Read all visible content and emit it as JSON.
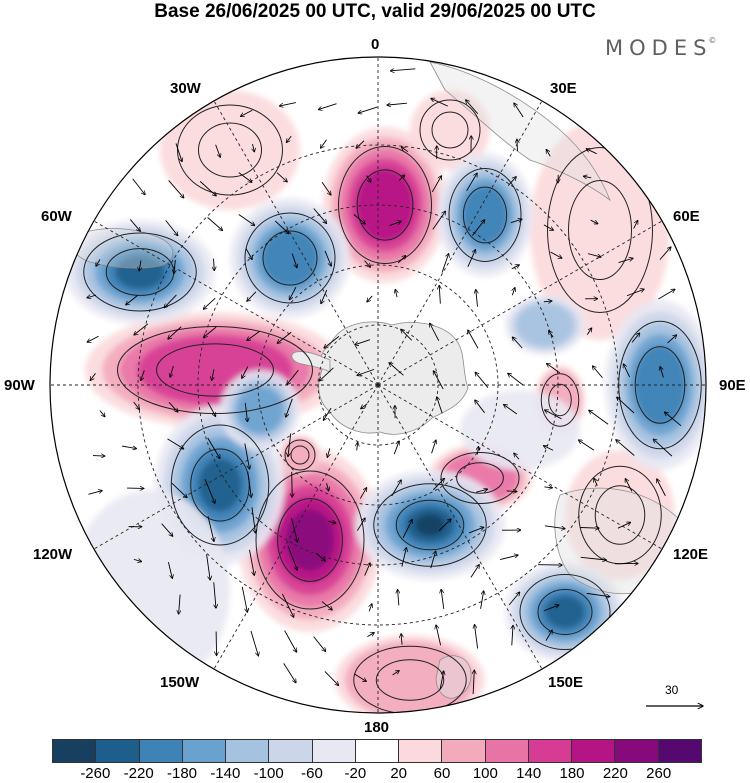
{
  "title": "Base 26/06/2025 00 UTC, valid 29/06/2025 00 UTC",
  "brand": {
    "name": "MODES",
    "mark": "©"
  },
  "map": {
    "projection": "south polar stereographic",
    "center": "South Pole",
    "graticule": "dashed",
    "longitude_labels": [
      "0",
      "30E",
      "60E",
      "90E",
      "120E",
      "150E",
      "180",
      "150W",
      "120W",
      "90W",
      "60W",
      "30W"
    ],
    "wind_arrows": true,
    "filled_contours": true
  },
  "reference_vector": {
    "value": "30"
  },
  "colorbar": {
    "colors": [
      "#173f5f",
      "#1d5e8c",
      "#3e82b6",
      "#6aa2cf",
      "#a5c2e0",
      "#ccd6ea",
      "#e8e8f2",
      "#ffffff",
      "#fbd9dc",
      "#f3aabd",
      "#e874a6",
      "#d63c94",
      "#b51485",
      "#860a7c",
      "#55086f"
    ],
    "ticks": [
      "-260",
      "-220",
      "-180",
      "-140",
      "-100",
      "-60",
      "-20",
      "20",
      "60",
      "100",
      "140",
      "180",
      "220",
      "260"
    ]
  }
}
